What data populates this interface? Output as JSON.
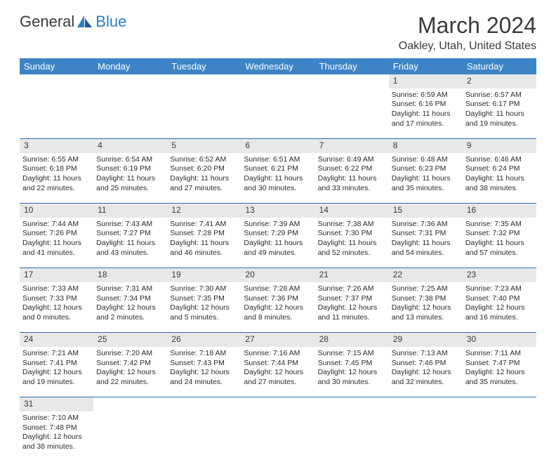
{
  "logo": {
    "text1": "General",
    "text2": "Blue"
  },
  "title": "March 2024",
  "location": "Oakley, Utah, United States",
  "colors": {
    "header_bg": "#3d84c6",
    "header_text": "#ffffff",
    "daynum_bg": "#e8e8e8",
    "row_divider": "#2b6cb0",
    "logo_gray": "#3a3a3a",
    "logo_blue": "#2a7ec4"
  },
  "fonts": {
    "title_size": 32,
    "location_size": 16,
    "header_size": 13,
    "cell_size": 10.5
  },
  "day_headers": [
    "Sunday",
    "Monday",
    "Tuesday",
    "Wednesday",
    "Thursday",
    "Friday",
    "Saturday"
  ],
  "weeks": [
    [
      null,
      null,
      null,
      null,
      null,
      {
        "n": "1",
        "sr": "Sunrise: 6:59 AM",
        "ss": "Sunset: 6:16 PM",
        "d1": "Daylight: 11 hours",
        "d2": "and 17 minutes."
      },
      {
        "n": "2",
        "sr": "Sunrise: 6:57 AM",
        "ss": "Sunset: 6:17 PM",
        "d1": "Daylight: 11 hours",
        "d2": "and 19 minutes."
      }
    ],
    [
      {
        "n": "3",
        "sr": "Sunrise: 6:55 AM",
        "ss": "Sunset: 6:18 PM",
        "d1": "Daylight: 11 hours",
        "d2": "and 22 minutes."
      },
      {
        "n": "4",
        "sr": "Sunrise: 6:54 AM",
        "ss": "Sunset: 6:19 PM",
        "d1": "Daylight: 11 hours",
        "d2": "and 25 minutes."
      },
      {
        "n": "5",
        "sr": "Sunrise: 6:52 AM",
        "ss": "Sunset: 6:20 PM",
        "d1": "Daylight: 11 hours",
        "d2": "and 27 minutes."
      },
      {
        "n": "6",
        "sr": "Sunrise: 6:51 AM",
        "ss": "Sunset: 6:21 PM",
        "d1": "Daylight: 11 hours",
        "d2": "and 30 minutes."
      },
      {
        "n": "7",
        "sr": "Sunrise: 6:49 AM",
        "ss": "Sunset: 6:22 PM",
        "d1": "Daylight: 11 hours",
        "d2": "and 33 minutes."
      },
      {
        "n": "8",
        "sr": "Sunrise: 6:48 AM",
        "ss": "Sunset: 6:23 PM",
        "d1": "Daylight: 11 hours",
        "d2": "and 35 minutes."
      },
      {
        "n": "9",
        "sr": "Sunrise: 6:46 AM",
        "ss": "Sunset: 6:24 PM",
        "d1": "Daylight: 11 hours",
        "d2": "and 38 minutes."
      }
    ],
    [
      {
        "n": "10",
        "sr": "Sunrise: 7:44 AM",
        "ss": "Sunset: 7:26 PM",
        "d1": "Daylight: 11 hours",
        "d2": "and 41 minutes."
      },
      {
        "n": "11",
        "sr": "Sunrise: 7:43 AM",
        "ss": "Sunset: 7:27 PM",
        "d1": "Daylight: 11 hours",
        "d2": "and 43 minutes."
      },
      {
        "n": "12",
        "sr": "Sunrise: 7:41 AM",
        "ss": "Sunset: 7:28 PM",
        "d1": "Daylight: 11 hours",
        "d2": "and 46 minutes."
      },
      {
        "n": "13",
        "sr": "Sunrise: 7:39 AM",
        "ss": "Sunset: 7:29 PM",
        "d1": "Daylight: 11 hours",
        "d2": "and 49 minutes."
      },
      {
        "n": "14",
        "sr": "Sunrise: 7:38 AM",
        "ss": "Sunset: 7:30 PM",
        "d1": "Daylight: 11 hours",
        "d2": "and 52 minutes."
      },
      {
        "n": "15",
        "sr": "Sunrise: 7:36 AM",
        "ss": "Sunset: 7:31 PM",
        "d1": "Daylight: 11 hours",
        "d2": "and 54 minutes."
      },
      {
        "n": "16",
        "sr": "Sunrise: 7:35 AM",
        "ss": "Sunset: 7:32 PM",
        "d1": "Daylight: 11 hours",
        "d2": "and 57 minutes."
      }
    ],
    [
      {
        "n": "17",
        "sr": "Sunrise: 7:33 AM",
        "ss": "Sunset: 7:33 PM",
        "d1": "Daylight: 12 hours",
        "d2": "and 0 minutes."
      },
      {
        "n": "18",
        "sr": "Sunrise: 7:31 AM",
        "ss": "Sunset: 7:34 PM",
        "d1": "Daylight: 12 hours",
        "d2": "and 2 minutes."
      },
      {
        "n": "19",
        "sr": "Sunrise: 7:30 AM",
        "ss": "Sunset: 7:35 PM",
        "d1": "Daylight: 12 hours",
        "d2": "and 5 minutes."
      },
      {
        "n": "20",
        "sr": "Sunrise: 7:28 AM",
        "ss": "Sunset: 7:36 PM",
        "d1": "Daylight: 12 hours",
        "d2": "and 8 minutes."
      },
      {
        "n": "21",
        "sr": "Sunrise: 7:26 AM",
        "ss": "Sunset: 7:37 PM",
        "d1": "Daylight: 12 hours",
        "d2": "and 11 minutes."
      },
      {
        "n": "22",
        "sr": "Sunrise: 7:25 AM",
        "ss": "Sunset: 7:38 PM",
        "d1": "Daylight: 12 hours",
        "d2": "and 13 minutes."
      },
      {
        "n": "23",
        "sr": "Sunrise: 7:23 AM",
        "ss": "Sunset: 7:40 PM",
        "d1": "Daylight: 12 hours",
        "d2": "and 16 minutes."
      }
    ],
    [
      {
        "n": "24",
        "sr": "Sunrise: 7:21 AM",
        "ss": "Sunset: 7:41 PM",
        "d1": "Daylight: 12 hours",
        "d2": "and 19 minutes."
      },
      {
        "n": "25",
        "sr": "Sunrise: 7:20 AM",
        "ss": "Sunset: 7:42 PM",
        "d1": "Daylight: 12 hours",
        "d2": "and 22 minutes."
      },
      {
        "n": "26",
        "sr": "Sunrise: 7:18 AM",
        "ss": "Sunset: 7:43 PM",
        "d1": "Daylight: 12 hours",
        "d2": "and 24 minutes."
      },
      {
        "n": "27",
        "sr": "Sunrise: 7:16 AM",
        "ss": "Sunset: 7:44 PM",
        "d1": "Daylight: 12 hours",
        "d2": "and 27 minutes."
      },
      {
        "n": "28",
        "sr": "Sunrise: 7:15 AM",
        "ss": "Sunset: 7:45 PM",
        "d1": "Daylight: 12 hours",
        "d2": "and 30 minutes."
      },
      {
        "n": "29",
        "sr": "Sunrise: 7:13 AM",
        "ss": "Sunset: 7:46 PM",
        "d1": "Daylight: 12 hours",
        "d2": "and 32 minutes."
      },
      {
        "n": "30",
        "sr": "Sunrise: 7:11 AM",
        "ss": "Sunset: 7:47 PM",
        "d1": "Daylight: 12 hours",
        "d2": "and 35 minutes."
      }
    ],
    [
      {
        "n": "31",
        "sr": "Sunrise: 7:10 AM",
        "ss": "Sunset: 7:48 PM",
        "d1": "Daylight: 12 hours",
        "d2": "and 38 minutes."
      },
      null,
      null,
      null,
      null,
      null,
      null
    ]
  ]
}
